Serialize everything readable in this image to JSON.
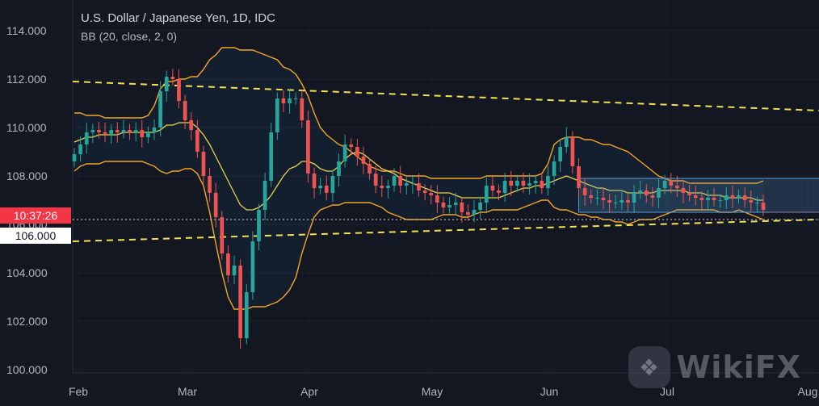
{
  "header": {
    "title": "U.S. Dollar / Japanese Yen, 1D, IDC",
    "indicator": "BB (20, close, 2, 0)"
  },
  "badges": {
    "countdown": "10:37:26",
    "level_label": "106.000"
  },
  "watermark": {
    "text": "WikiFX",
    "logo_icon": "eagle-logo-icon"
  },
  "colors": {
    "background": "#131722",
    "up_candle": "#26a69a",
    "down_candle": "#ef5350",
    "bb_band": "#f5a623",
    "bb_basis": "#e8d44d",
    "trend_line": "#f5e050",
    "range_box": "#5b9bd5",
    "countdown_badge": "#f23645"
  },
  "chart_data": {
    "type": "candlestick",
    "symbol": "U.S. Dollar / Japanese Yen",
    "timeframe": "1D",
    "ylim": [
      100.0,
      114.5
    ],
    "y_ticks": [
      "114.000",
      "112.000",
      "110.000",
      "108.000",
      "106.000",
      "104.000",
      "102.000",
      "100.000"
    ],
    "x_ticks": [
      "Feb",
      "Mar",
      "Apr",
      "May",
      "Jun",
      "Jul",
      "Aug"
    ],
    "close_series_approx": [
      108.9,
      109.3,
      109.8,
      109.9,
      109.8,
      109.7,
      109.9,
      109.8,
      109.9,
      109.8,
      109.9,
      109.6,
      109.8,
      110.0,
      111.5,
      112.1,
      112.0,
      111.1,
      110.3,
      109.9,
      109.0,
      108.0,
      107.3,
      106.3,
      104.8,
      103.9,
      104.3,
      101.3,
      103.2,
      105.3,
      106.6,
      107.8,
      109.8,
      111.2,
      111.0,
      111.2,
      111.2,
      110.3,
      108.1,
      107.5,
      107.6,
      107.3,
      108.0,
      108.6,
      109.3,
      109.2,
      108.8,
      108.5,
      108.1,
      107.6,
      107.5,
      107.6,
      108.0,
      107.6,
      107.7,
      107.7,
      107.4,
      107.3,
      107.2,
      106.9,
      106.7,
      106.8,
      106.9,
      106.5,
      106.4,
      106.6,
      106.9,
      107.6,
      107.4,
      107.3,
      107.8,
      107.6,
      107.8,
      107.6,
      107.7,
      107.8,
      107.5,
      108.0,
      108.6,
      109.2,
      109.6,
      108.4,
      107.5,
      107.2,
      107.1,
      107.1,
      107.0,
      106.9,
      106.9,
      107.0,
      106.9,
      107.3,
      107.4,
      107.2,
      107.1,
      107.5,
      107.8,
      107.6,
      107.5,
      107.3,
      107.2,
      107.1,
      107.0,
      107.1,
      107.0,
      107.0,
      107.2,
      107.1,
      107.2,
      107.0,
      106.9,
      106.9,
      106.6
    ],
    "bollinger": {
      "params": "20, close, 2, 0",
      "basis_approx": [
        109.4,
        109.5,
        109.6,
        109.6,
        109.7,
        109.7,
        109.7,
        109.7,
        109.8,
        109.8,
        109.8,
        109.8,
        109.8,
        109.8,
        109.9,
        110.1,
        110.1,
        110.2,
        110.2,
        110.2,
        110.0,
        109.7,
        109.3,
        108.8,
        108.3,
        107.8,
        107.3,
        106.8,
        106.6,
        106.6,
        106.7,
        106.9,
        107.2,
        107.6,
        108.0,
        108.3,
        108.4,
        108.6,
        108.6,
        108.5,
        108.3,
        108.2,
        108.2,
        108.4,
        108.7,
        108.9,
        109.0,
        108.9,
        108.7,
        108.5,
        108.3,
        108.2,
        108.1,
        107.9,
        107.8,
        107.7,
        107.6,
        107.5,
        107.4,
        107.3,
        107.3,
        107.3,
        107.2,
        107.1,
        107.1,
        107.1,
        107.1,
        107.1,
        107.1,
        107.1,
        107.2,
        107.3,
        107.4,
        107.5,
        107.5,
        107.6,
        107.6,
        107.7,
        107.8,
        107.9,
        108.0,
        107.9,
        107.8,
        107.7,
        107.6,
        107.5,
        107.5,
        107.4,
        107.4,
        107.4,
        107.3,
        107.3,
        107.3,
        107.3,
        107.3,
        107.4,
        107.4,
        107.4,
        107.4,
        107.4,
        107.3,
        107.3,
        107.3,
        107.2,
        107.2,
        107.2,
        107.1,
        107.1,
        107.1,
        107.1,
        107.1,
        107.0,
        107.0
      ],
      "upper_approx": [
        110.6,
        110.6,
        110.5,
        110.5,
        110.5,
        110.4,
        110.4,
        110.4,
        110.4,
        110.4,
        110.4,
        110.4,
        110.5,
        110.9,
        111.6,
        111.9,
        111.9,
        112.0,
        112.0,
        112.1,
        112.1,
        112.4,
        112.8,
        113.0,
        113.3,
        113.3,
        113.3,
        113.2,
        113.2,
        113.2,
        113.1,
        113.0,
        112.9,
        112.8,
        112.5,
        112.4,
        112.2,
        111.8,
        111.3,
        110.6,
        110.0,
        109.7,
        109.5,
        109.3,
        109.2,
        109.0,
        108.8,
        108.6,
        108.4,
        108.3,
        108.2,
        108.2,
        108.2,
        108.1,
        108.0,
        108.0,
        108.0,
        108.0,
        107.9,
        107.9,
        107.9,
        107.9,
        107.9,
        107.9,
        107.9,
        107.9,
        107.9,
        108.0,
        108.0,
        108.0,
        108.0,
        108.0,
        108.0,
        108.0,
        108.0,
        108.0,
        108.1,
        108.5,
        109.3,
        109.5,
        109.6,
        109.6,
        109.6,
        109.5,
        109.5,
        109.4,
        109.3,
        109.3,
        109.2,
        109.1,
        109.0,
        108.8,
        108.6,
        108.4,
        108.2,
        108.0,
        107.9,
        107.8,
        107.8,
        107.8,
        107.7,
        107.7,
        107.7,
        107.7,
        107.7,
        107.7,
        107.7,
        107.7,
        107.7,
        107.7,
        107.7,
        107.7,
        107.8
      ],
      "lower_approx": [
        108.2,
        108.4,
        108.5,
        108.5,
        108.5,
        108.6,
        108.6,
        108.6,
        108.6,
        108.6,
        108.6,
        108.6,
        108.5,
        108.4,
        108.2,
        108.1,
        108.2,
        108.2,
        108.3,
        108.3,
        108.1,
        107.6,
        106.5,
        105.2,
        104.0,
        103.0,
        102.5,
        102.5,
        102.5,
        102.6,
        102.6,
        102.6,
        102.7,
        102.8,
        103.0,
        103.3,
        103.8,
        104.8,
        105.6,
        106.3,
        106.6,
        106.7,
        106.8,
        106.8,
        106.9,
        106.9,
        106.9,
        106.9,
        106.9,
        106.8,
        106.7,
        106.5,
        106.4,
        106.3,
        106.2,
        106.2,
        106.2,
        106.2,
        106.2,
        106.3,
        106.4,
        106.4,
        106.4,
        106.3,
        106.3,
        106.4,
        106.5,
        106.5,
        106.6,
        106.6,
        106.6,
        106.6,
        106.6,
        106.7,
        106.8,
        106.9,
        107.0,
        107.0,
        106.7,
        106.6,
        106.6,
        106.5,
        106.4,
        106.4,
        106.3,
        106.3,
        106.2,
        106.2,
        106.1,
        106.1,
        106.0,
        106.1,
        106.2,
        106.2,
        106.2,
        106.3,
        106.4,
        106.5,
        106.6,
        106.6,
        106.6,
        106.6,
        106.6,
        106.6,
        106.6,
        106.5,
        106.5,
        106.5,
        106.6,
        106.5,
        106.4,
        106.3,
        106.2
      ]
    },
    "trend_lines": [
      {
        "style": "dashed",
        "from": [
          0,
          111.9
        ],
        "to": [
          113,
          110.7
        ]
      },
      {
        "style": "dashed",
        "from": [
          0,
          105.3
        ],
        "to": [
          113,
          106.2
        ]
      }
    ],
    "range_box": {
      "from_index": 82,
      "to_index": 113,
      "top": 107.9,
      "bottom": 106.5
    },
    "reference_line": {
      "value": 106.2,
      "style": "dotted"
    },
    "last_value": 106.5,
    "grid": true
  }
}
